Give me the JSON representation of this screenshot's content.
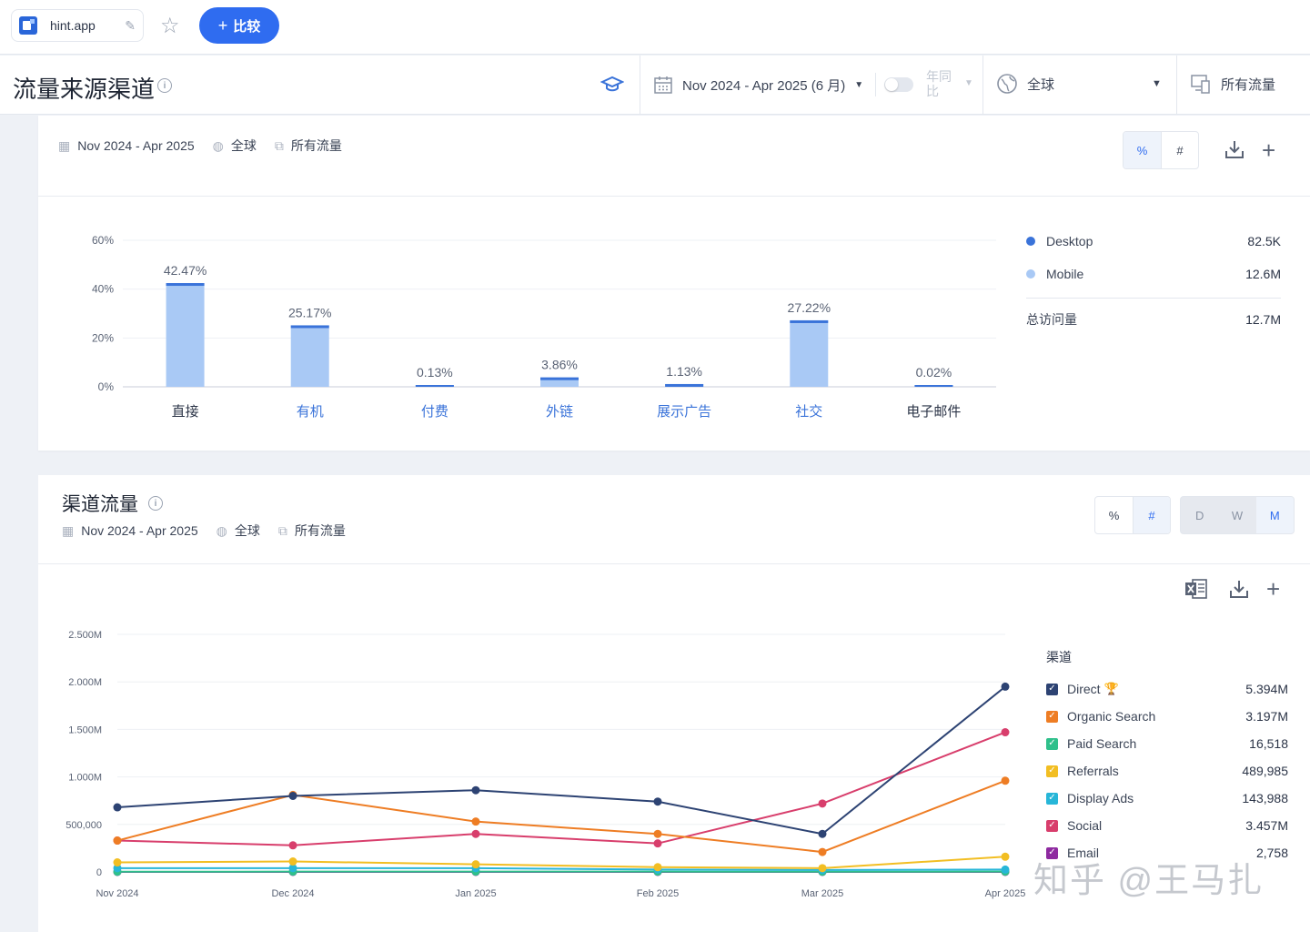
{
  "topbar": {
    "site": "hint.app",
    "compare_label": "比较"
  },
  "header": {
    "title": "流量来源渠道",
    "date_range": "Nov 2024 - Apr 2025 (6 月)",
    "yoy_label": "年同比",
    "region": "全球",
    "traffic": "所有流量"
  },
  "card1": {
    "meta": {
      "date": "Nov 2024 - Apr 2025",
      "region": "全球",
      "traffic": "所有流量"
    },
    "toggle": {
      "percent": "%",
      "number": "#"
    },
    "legend": {
      "items": [
        {
          "name": "Desktop",
          "value": "82.5K",
          "color": "#3a73d9"
        },
        {
          "name": "Mobile",
          "value": "12.6M",
          "color": "#a9c9f5"
        }
      ],
      "total_label": "总访问量",
      "total_value": "12.7M"
    }
  },
  "card2": {
    "title": "渠道流量",
    "meta": {
      "date": "Nov 2024 - Apr 2025",
      "region": "全球",
      "traffic": "所有流量"
    },
    "toggle": {
      "percent": "%",
      "number": "#"
    },
    "granularity": {
      "d": "D",
      "w": "W",
      "m": "M"
    },
    "legend": {
      "header": "渠道",
      "items": [
        {
          "name": "Direct",
          "value": "5.394M",
          "color": "#2d4373"
        },
        {
          "name": "Organic Search",
          "value": "3.197M",
          "color": "#ee7d24"
        },
        {
          "name": "Paid Search",
          "value": "16,518",
          "color": "#2fc08b"
        },
        {
          "name": "Referrals",
          "value": "489,985",
          "color": "#f2be23"
        },
        {
          "name": "Display Ads",
          "value": "143,988",
          "color": "#27b6d8"
        },
        {
          "name": "Social",
          "value": "3.457M",
          "color": "#d83e6c"
        },
        {
          "name": "Email",
          "value": "2,758",
          "color": "#8e2aa0"
        }
      ]
    }
  },
  "watermark": "知乎 @王马扎",
  "chart_data": [
    {
      "type": "bar",
      "categories": [
        "直接",
        "有机",
        "付费",
        "外链",
        "展示广告",
        "社交",
        "电子邮件"
      ],
      "values": [
        42.47,
        25.17,
        0.13,
        3.86,
        1.13,
        27.22,
        0.02
      ],
      "labels": [
        "42.47%",
        "25.17%",
        "0.13%",
        "3.86%",
        "1.13%",
        "27.22%",
        "0.02%"
      ],
      "yticks": [
        "60%",
        "40%",
        "20%",
        "0%"
      ],
      "ylim": [
        0,
        60
      ],
      "series": [
        {
          "name": "Desktop",
          "color": "#3a73d9"
        },
        {
          "name": "Mobile",
          "color": "#a9c9f5"
        }
      ],
      "category_colors": [
        "#2b3447",
        "#3a73d9",
        "#3a73d9",
        "#3a73d9",
        "#3a73d9",
        "#3a73d9",
        "#2b3447"
      ],
      "grid": true
    },
    {
      "type": "line",
      "x": [
        "Nov 2024",
        "Dec 2024",
        "Jan 2025",
        "Feb 2025",
        "Mar 2025",
        "Apr 2025"
      ],
      "yticks": [
        "2.500M",
        "2.000M",
        "1.500M",
        "1.000M",
        "500,000",
        "0"
      ],
      "ylim": [
        0,
        2500000
      ],
      "grid": true,
      "series": [
        {
          "name": "Direct",
          "color": "#2d4373",
          "values": [
            680000,
            800000,
            860000,
            740000,
            400000,
            1950000
          ]
        },
        {
          "name": "Organic Search",
          "color": "#ee7d24",
          "values": [
            330000,
            810000,
            530000,
            400000,
            210000,
            960000
          ]
        },
        {
          "name": "Social",
          "color": "#d83e6c",
          "values": [
            330000,
            280000,
            400000,
            300000,
            720000,
            1470000
          ]
        },
        {
          "name": "Referrals",
          "color": "#f2be23",
          "values": [
            100000,
            110000,
            80000,
            50000,
            40000,
            160000
          ]
        },
        {
          "name": "Display Ads",
          "color": "#27b6d8",
          "values": [
            40000,
            40000,
            40000,
            25000,
            20000,
            25000
          ]
        },
        {
          "name": "Paid Search",
          "color": "#2fc08b",
          "values": [
            2000,
            3000,
            3000,
            3000,
            2000,
            3000
          ]
        },
        {
          "name": "Email",
          "color": "#8e2aa0",
          "values": [
            500,
            500,
            500,
            500,
            400,
            400
          ]
        }
      ]
    }
  ]
}
